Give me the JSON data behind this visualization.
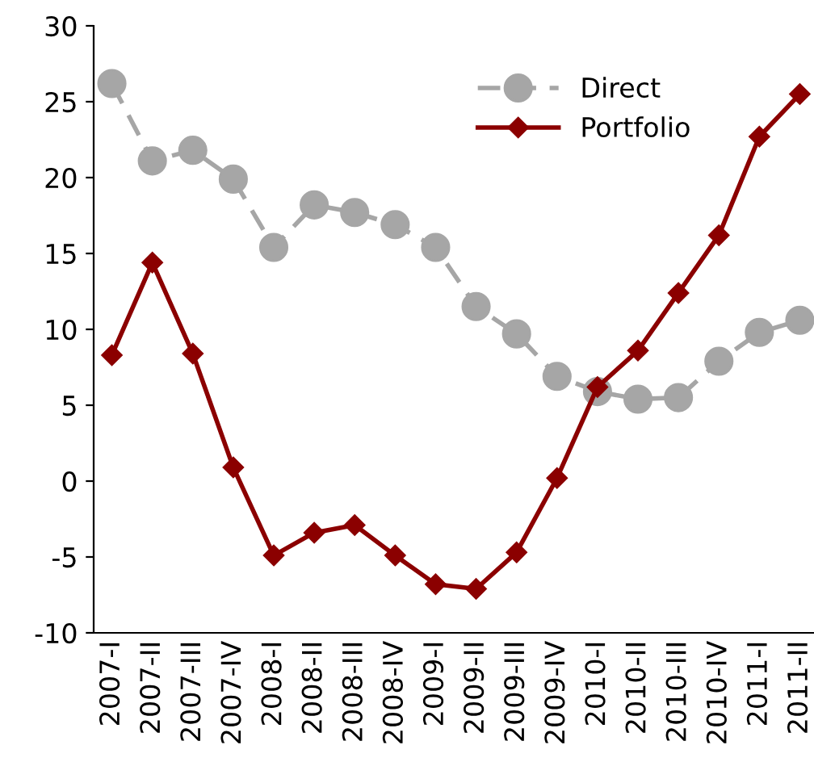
{
  "chart_data": {
    "type": "line",
    "categories": [
      "2007-I",
      "2007-II",
      "2007-III",
      "2007-IV",
      "2008-I",
      "2008-II",
      "2008-III",
      "2008-IV",
      "2009-I",
      "2009-II",
      "2009-III",
      "2009-IV",
      "2010-I",
      "2010-II",
      "2010-III",
      "2010-IV",
      "2011-I",
      "2011-II"
    ],
    "series": [
      {
        "name": "Direct",
        "color": "#a6a6a6",
        "marker": "circle",
        "line_style": "dashed",
        "values": [
          26.2,
          21.1,
          21.8,
          19.9,
          15.4,
          18.2,
          17.7,
          16.9,
          15.4,
          11.5,
          9.7,
          6.9,
          5.9,
          5.4,
          5.5,
          7.9,
          9.8,
          10.6
        ]
      },
      {
        "name": "Portfolio",
        "color": "#8b0000",
        "marker": "diamond",
        "line_style": "solid",
        "values": [
          8.3,
          14.4,
          8.4,
          0.9,
          -4.9,
          -3.4,
          -2.9,
          -4.9,
          -6.8,
          -7.1,
          -4.7,
          0.2,
          6.2,
          8.6,
          12.4,
          16.2,
          22.7,
          25.5
        ]
      }
    ],
    "ylim": [
      -10,
      30
    ],
    "yticks": [
      -10,
      -5,
      0,
      5,
      10,
      15,
      20,
      25,
      30
    ],
    "grid": false,
    "legend": "top right"
  }
}
